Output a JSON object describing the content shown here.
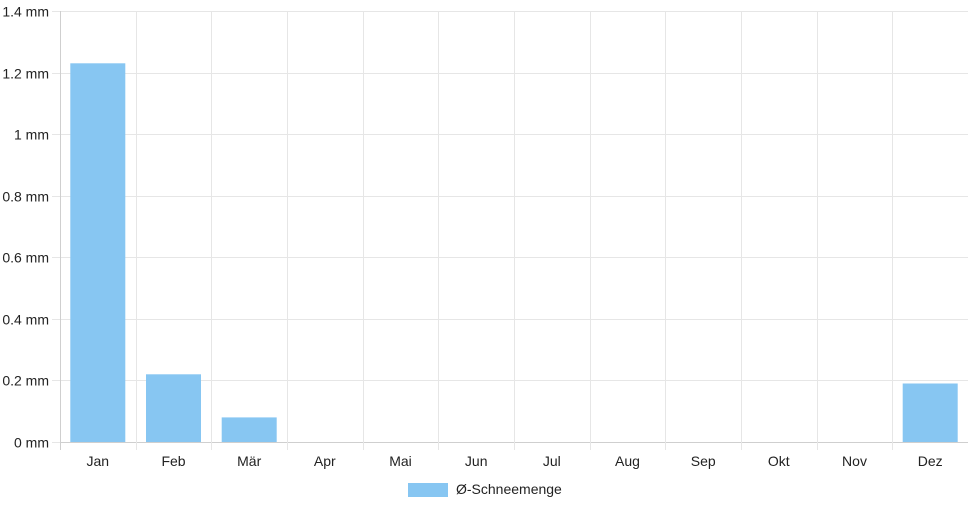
{
  "chart_data": {
    "type": "bar",
    "title": "",
    "xlabel": "",
    "ylabel": "",
    "categories": [
      "Jan",
      "Feb",
      "Mär",
      "Apr",
      "Mai",
      "Jun",
      "Jul",
      "Aug",
      "Sep",
      "Okt",
      "Nov",
      "Dez"
    ],
    "series": [
      {
        "name": "Ø-Schneemenge",
        "values": [
          1.23,
          0.22,
          0.08,
          0,
          0,
          0,
          0,
          0,
          0,
          0,
          0,
          0.19
        ],
        "color": "#87c6f2"
      }
    ],
    "ylim": [
      0,
      1.4
    ],
    "y_ticks": [
      0,
      0.2,
      0.4,
      0.6,
      0.8,
      1,
      1.2,
      1.4
    ],
    "y_tick_labels": [
      "0 mm",
      "0.2 mm",
      "0.4 mm",
      "0.6 mm",
      "0.8 mm",
      "1 mm",
      "1.2 mm",
      "1.4 mm"
    ],
    "grid": true,
    "legend_position": "bottom"
  }
}
